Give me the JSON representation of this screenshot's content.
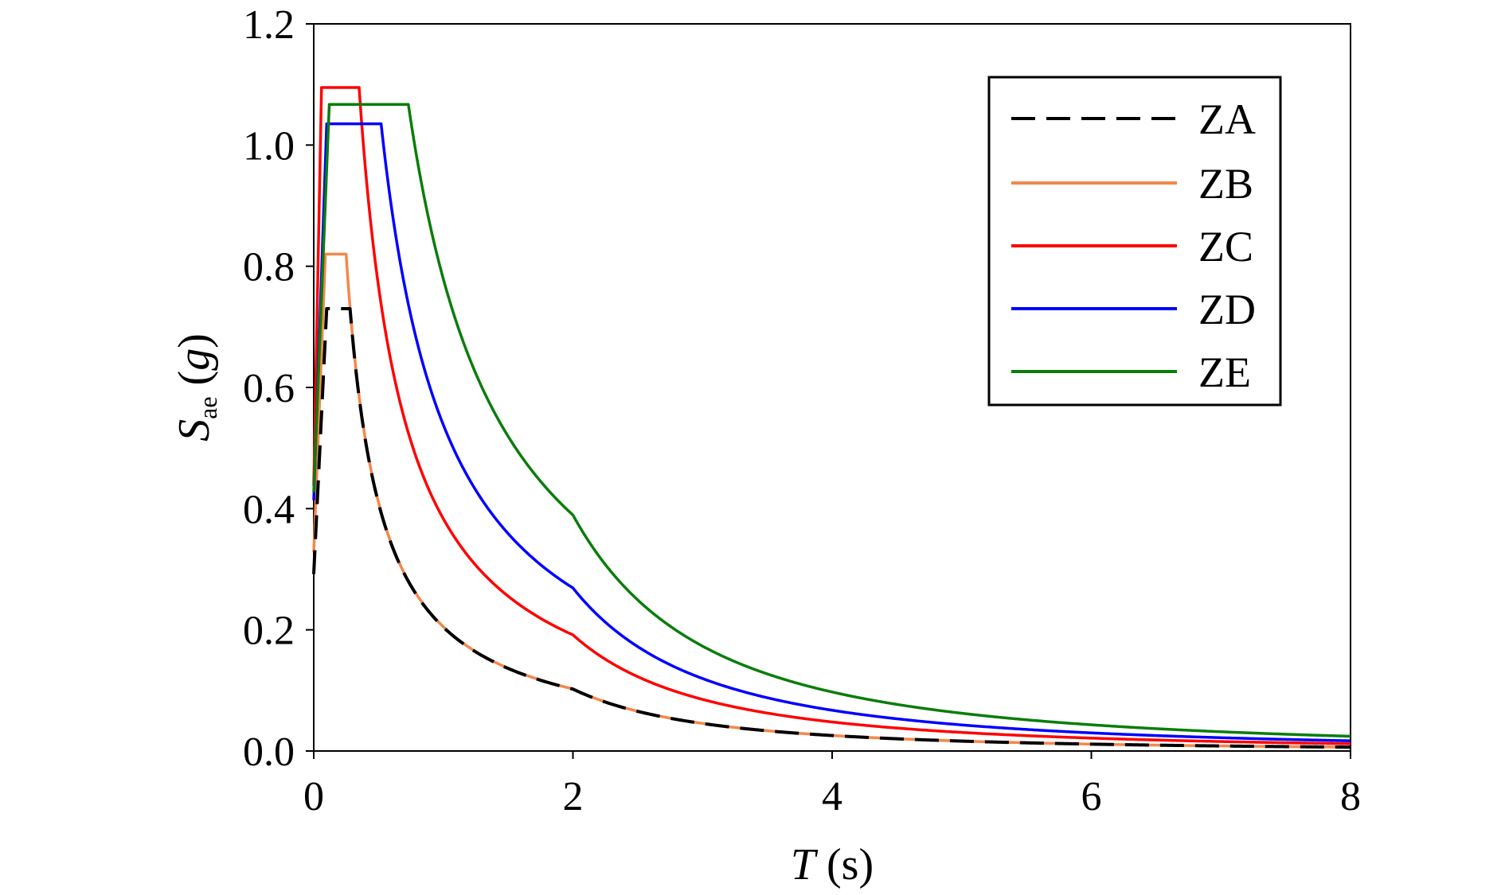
{
  "chart_data": {
    "type": "line",
    "xlabel": {
      "var": "T",
      "unit": " (s)"
    },
    "ylabel": {
      "var": "S",
      "sub": "ae",
      "pre": " (",
      "unit": "g",
      "post": ")"
    },
    "xlim": [
      0,
      8
    ],
    "ylim": [
      0,
      1.2
    ],
    "x_ticks": [
      "0",
      "2",
      "4",
      "6",
      "8"
    ],
    "y_ticks": [
      "0.0",
      "0.2",
      "0.4",
      "0.6",
      "0.8",
      "1.0",
      "1.2"
    ],
    "grid": false,
    "legend_position": "top-right",
    "series": [
      {
        "name": "ZA",
        "color": "#000000",
        "dash": true,
        "ag": 0.292,
        "plateau": 0.73,
        "TB": 0.1,
        "TC": 0.28,
        "TD": 2.0
      },
      {
        "name": "ZB",
        "color": "#f4874b",
        "dash": false,
        "ag": 0.328,
        "plateau": 0.82,
        "TB": 0.09,
        "TC": 0.25,
        "TD": 2.0
      },
      {
        "name": "ZC",
        "color": "#ff0000",
        "dash": false,
        "ag": 0.438,
        "plateau": 1.095,
        "TB": 0.06,
        "TC": 0.35,
        "TD": 2.0
      },
      {
        "name": "ZD",
        "color": "#0000ff",
        "dash": false,
        "ag": 0.414,
        "plateau": 1.035,
        "TB": 0.1,
        "TC": 0.52,
        "TD": 2.0
      },
      {
        "name": "ZE",
        "color": "#0a7d0a",
        "dash": false,
        "ag": 0.427,
        "plateau": 1.067,
        "TB": 0.12,
        "TC": 0.73,
        "TD": 2.0
      }
    ]
  }
}
